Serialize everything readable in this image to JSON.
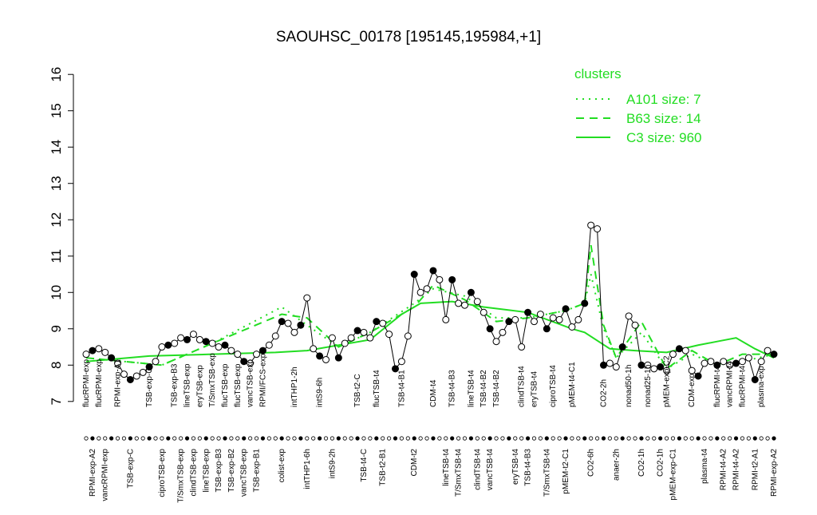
{
  "chart_data": {
    "type": "line",
    "title": "SAOUHSC_00178 [195145,195984,+1]",
    "legend_title": "clusters",
    "legend_color": "#22dd22",
    "categories": [
      "flucRPMI-exp",
      "RPMI-exp-A2",
      "flucRPMI-exp",
      "vancRPMI-exp",
      null,
      "RPMI-exp-A1",
      null,
      "TSB-exp-C",
      null,
      null,
      "TSB-exp-C",
      null,
      "ciproTSB-exp",
      null,
      "TSB-exp-B3",
      "T/SmxTSB-exp",
      "lineTSB-exp",
      "clindTSB-exp",
      "eryTSB-exp",
      "lineTSB-exp",
      "T/SmxTSB-exp",
      "TSB-exp-B3",
      "flucTSB-exp",
      "TSB-exp-B2",
      "flucTSB-exp",
      "vancTSB-exp",
      "vancTSB-exp",
      "TSB-exp-B1",
      "RPMI/FCS-exp",
      null,
      null,
      "colist-exp",
      null,
      "intTHP1-2h",
      null,
      "intTHP1-6h",
      null,
      "intS9-6h",
      null,
      "intS9-2h",
      null,
      null,
      null,
      "TSB-t2-C",
      "TSB-t4-C",
      null,
      "flucTSB-t4",
      "TSB-t2-B1",
      null,
      null,
      "TSB-t4-B1",
      null,
      "CDM-t2",
      null,
      null,
      "CDM-t4",
      null,
      "lineTSB-t4",
      "TSB-t4-B3",
      "T/SmxTSB-t4",
      null,
      "lineTSB-t4",
      "clindTSB-t4",
      "TSB-t4-B2",
      "vancTSB-t4",
      "TSB-t4-B2",
      null,
      null,
      "eryTSB-t4",
      "clindTSB-t4",
      "TSB-t4-B3",
      "eryTSB-t4",
      null,
      "T/SmxTSB-t4",
      "ciproTSB-t4",
      null,
      "pMEM-t2-C1",
      "pMEM-t4-C1",
      null,
      null,
      "CO2-6h",
      null,
      "CO2-2h",
      null,
      "anaer-2h",
      null,
      "nonad50-1h",
      null,
      "CO2-1h",
      "nonad25-1h",
      null,
      "CO2-1h",
      "pMEM-exp-C2",
      "pMEM-exp-C1",
      null,
      null,
      "CDM-exp",
      null,
      "plasma-t4",
      null,
      "flucRPMI-t4",
      "RPMI-t4-A2",
      "vancRPMI-t4",
      "RPMI-t4-A2",
      "flucRPMI-t4",
      null,
      "RPMI-t2-A1",
      "plasma-exp",
      null,
      "RPMI-exp-A2"
    ],
    "values": [
      8.3,
      8.4,
      8.45,
      8.35,
      8.2,
      8.05,
      7.75,
      7.6,
      7.7,
      7.8,
      7.95,
      8.1,
      8.5,
      8.55,
      8.6,
      8.75,
      8.7,
      8.85,
      8.7,
      8.65,
      8.6,
      8.5,
      8.55,
      8.4,
      8.3,
      8.1,
      8.05,
      8.3,
      8.4,
      8.55,
      8.8,
      9.2,
      9.15,
      8.9,
      9.1,
      9.85,
      8.45,
      8.25,
      8.15,
      8.75,
      8.2,
      8.6,
      8.75,
      8.95,
      8.9,
      8.75,
      9.2,
      9.15,
      8.85,
      7.9,
      8.1,
      8.8,
      10.5,
      10.0,
      10.1,
      10.6,
      10.35,
      9.25,
      10.35,
      9.7,
      9.65,
      10.0,
      9.75,
      9.45,
      9.0,
      8.65,
      8.9,
      9.2,
      9.25,
      8.5,
      9.45,
      9.2,
      9.4,
      9.0,
      9.3,
      9.25,
      9.55,
      9.05,
      9.25,
      9.7,
      11.85,
      11.75,
      8.0,
      8.05,
      7.95,
      8.5,
      9.35,
      9.1,
      8.0,
      8.0,
      7.9,
      7.95,
      7.85,
      8.3,
      8.45,
      8.4,
      7.85,
      7.7,
      8.05,
      8.1,
      8.0,
      8.1,
      8.0,
      8.05,
      8.1,
      8.2,
      7.6,
      8.1,
      8.4,
      8.3
    ],
    "point_color": "#000000",
    "series": [
      {
        "name": "A101 size: 7",
        "color": "#22dd22",
        "style": "dotted",
        "x": [
          0,
          12,
          20,
          31,
          35,
          40,
          45,
          52,
          55,
          60,
          65,
          70,
          76,
          79,
          80,
          82,
          84,
          88,
          92,
          96,
          100,
          104,
          109
        ],
        "values": [
          8.2,
          8.0,
          8.6,
          9.6,
          9.1,
          8.5,
          8.9,
          9.7,
          10.1,
          9.9,
          9.3,
          9.3,
          9.5,
          9.7,
          10.5,
          9.0,
          8.2,
          8.9,
          7.9,
          8.3,
          8.0,
          8.1,
          8.3
        ]
      },
      {
        "name": "B63 size: 14",
        "color": "#22dd22",
        "style": "dashed",
        "x": [
          0,
          12,
          20,
          31,
          35,
          40,
          45,
          52,
          55,
          60,
          65,
          70,
          76,
          79,
          80,
          82,
          84,
          88,
          92,
          96,
          100,
          104,
          109
        ],
        "values": [
          8.2,
          8.0,
          8.6,
          9.4,
          9.3,
          8.5,
          8.9,
          9.6,
          10.2,
          9.8,
          9.2,
          9.3,
          9.5,
          9.7,
          11.3,
          9.1,
          8.2,
          9.2,
          7.9,
          8.4,
          8.0,
          8.3,
          8.3
        ]
      },
      {
        "name": "C3 size: 960",
        "color": "#22dd22",
        "style": "solid",
        "x": [
          0,
          10,
          20,
          30,
          35,
          45,
          50,
          53,
          58,
          63,
          70,
          77,
          79,
          83,
          87,
          92,
          97,
          100,
          103,
          106,
          109
        ],
        "values": [
          8.1,
          8.25,
          8.3,
          8.35,
          8.4,
          8.7,
          9.4,
          9.7,
          9.75,
          9.6,
          9.45,
          9.0,
          8.9,
          8.45,
          8.4,
          8.35,
          8.55,
          8.65,
          8.75,
          8.45,
          8.2
        ]
      }
    ],
    "xlim": [
      0,
      109
    ],
    "ylim": [
      6.6,
      16.4
    ],
    "yticks": [
      7,
      8,
      9,
      10,
      11,
      12,
      13,
      14,
      15,
      16
    ]
  }
}
